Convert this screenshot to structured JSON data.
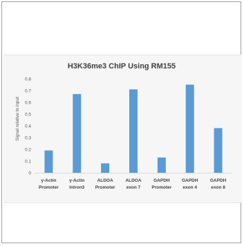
{
  "chart_data": {
    "type": "bar",
    "title": "H3K36me3 ChIP Using RM155",
    "xlabel": "",
    "ylabel": "Signal relative to input",
    "ylim": [
      0,
      0.8
    ],
    "yticks": [
      "0",
      "0.1",
      "0.2",
      "0.3",
      "0.4",
      "0.5",
      "0.6",
      "0.7",
      "0.8"
    ],
    "grid": false,
    "legend": "none",
    "bar_color": "#5b9bd5",
    "categories": [
      [
        "γ-Actin",
        "Promoter"
      ],
      [
        "γ-Actin",
        "Intron3"
      ],
      [
        "ALDOA",
        "Promoter"
      ],
      [
        "ALDOA",
        "exon 7"
      ],
      [
        "GAPDH",
        "Promoter"
      ],
      [
        "GAPDH",
        "exon 4"
      ],
      [
        "GAPDH",
        "exon 8"
      ]
    ],
    "values": [
      0.19,
      0.67,
      0.08,
      0.71,
      0.13,
      0.75,
      0.38
    ]
  }
}
